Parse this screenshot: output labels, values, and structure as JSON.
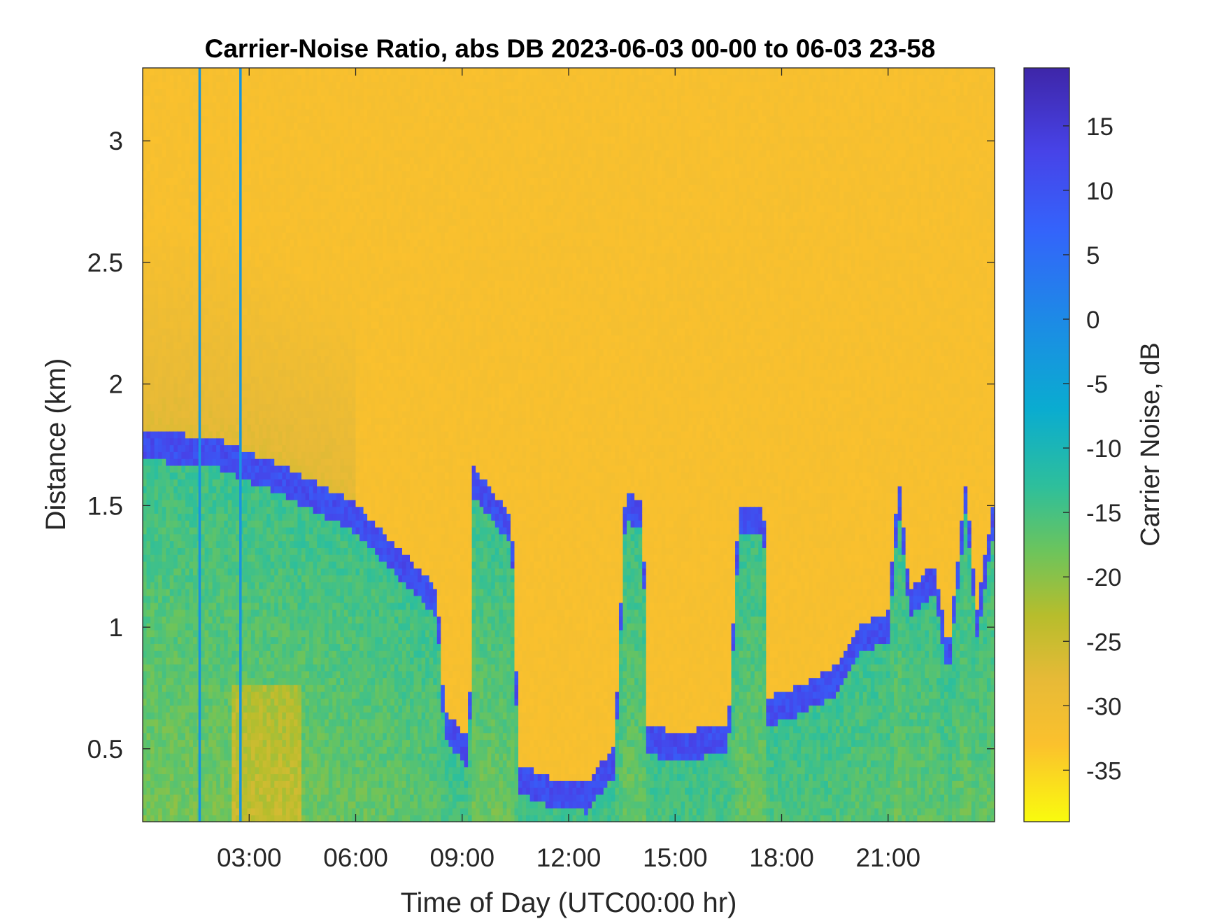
{
  "chart_data": {
    "type": "heatmap",
    "title": "Carrier-Noise Ratio, abs DB 2023-06-03 00-00 to 06-03 23-58",
    "xlabel": "Time of Day (UTC00:00 hr)",
    "ylabel": "Distance (km)",
    "colorbar_label": "Carrier Noise, dB",
    "xlim_hours": [
      0,
      24
    ],
    "ylim_km": [
      0.2,
      3.3
    ],
    "clim_db": [
      -39,
      19.5
    ],
    "x_ticks": [
      {
        "value": 3,
        "label": "03:00"
      },
      {
        "value": 6,
        "label": "06:00"
      },
      {
        "value": 9,
        "label": "09:00"
      },
      {
        "value": 12,
        "label": "12:00"
      },
      {
        "value": 15,
        "label": "15:00"
      },
      {
        "value": 18,
        "label": "18:00"
      },
      {
        "value": 21,
        "label": "21:00"
      }
    ],
    "y_ticks": [
      {
        "value": 0.5,
        "label": "0.5"
      },
      {
        "value": 1,
        "label": "1"
      },
      {
        "value": 1.5,
        "label": "1.5"
      },
      {
        "value": 2,
        "label": "2"
      },
      {
        "value": 2.5,
        "label": "2.5"
      },
      {
        "value": 3,
        "label": "3"
      }
    ],
    "colorbar_ticks": [
      {
        "value": 15,
        "label": "15"
      },
      {
        "value": 10,
        "label": "10"
      },
      {
        "value": 5,
        "label": "5"
      },
      {
        "value": 0,
        "label": "0"
      },
      {
        "value": -5,
        "label": "-5"
      },
      {
        "value": -10,
        "label": "-10"
      },
      {
        "value": -15,
        "label": "-15"
      },
      {
        "value": -20,
        "label": "-20"
      },
      {
        "value": -25,
        "label": "-25"
      },
      {
        "value": -30,
        "label": "-30"
      },
      {
        "value": -35,
        "label": "-35"
      }
    ],
    "colormap": "parula",
    "colormap_stops": [
      {
        "db": -39,
        "color": "#f9fb0e"
      },
      {
        "db": -33,
        "color": "#fbc12d"
      },
      {
        "db": -28,
        "color": "#e7ba37"
      },
      {
        "db": -23,
        "color": "#b7bd2c"
      },
      {
        "db": -18,
        "color": "#6cc45c"
      },
      {
        "db": -13,
        "color": "#2ebf9b"
      },
      {
        "db": -7,
        "color": "#0aacd0"
      },
      {
        "db": 0,
        "color": "#1d8ae6"
      },
      {
        "db": 7,
        "color": "#3463fb"
      },
      {
        "db": 13,
        "color": "#4743e8"
      },
      {
        "db": 19.5,
        "color": "#3e26a8"
      }
    ],
    "background_db": -32,
    "boundary_layer_top_km": [
      {
        "hour": 0,
        "km": 1.75
      },
      {
        "hour": 2,
        "km": 1.72
      },
      {
        "hour": 4,
        "km": 1.6
      },
      {
        "hour": 6,
        "km": 1.45
      },
      {
        "hour": 8.3,
        "km": 1.1
      },
      {
        "hour": 8.5,
        "km": 0.6
      },
      {
        "hour": 9.2,
        "km": 0.48
      },
      {
        "hour": 9.3,
        "km": 1.6
      },
      {
        "hour": 10.4,
        "km": 1.4
      },
      {
        "hour": 10.6,
        "km": 0.38
      },
      {
        "hour": 11.5,
        "km": 0.32
      },
      {
        "hour": 12.5,
        "km": 0.3
      },
      {
        "hour": 13.3,
        "km": 0.45
      },
      {
        "hour": 13.6,
        "km": 1.5
      },
      {
        "hour": 14.1,
        "km": 1.45
      },
      {
        "hour": 14.2,
        "km": 0.55
      },
      {
        "hour": 15,
        "km": 0.5
      },
      {
        "hour": 16.5,
        "km": 0.55
      },
      {
        "hour": 16.8,
        "km": 1.45
      },
      {
        "hour": 17.5,
        "km": 1.45
      },
      {
        "hour": 17.6,
        "km": 0.65
      },
      {
        "hour": 18.5,
        "km": 0.7
      },
      {
        "hour": 19.5,
        "km": 0.78
      },
      {
        "hour": 20.2,
        "km": 0.95
      },
      {
        "hour": 21,
        "km": 1.0
      },
      {
        "hour": 21.3,
        "km": 1.55
      },
      {
        "hour": 21.6,
        "km": 1.1
      },
      {
        "hour": 22.3,
        "km": 1.2
      },
      {
        "hour": 22.7,
        "km": 0.85
      },
      {
        "hour": 23.2,
        "km": 1.55
      },
      {
        "hour": 23.5,
        "km": 1.0
      },
      {
        "hour": 23.9,
        "km": 1.4
      },
      {
        "hour": 24,
        "km": 1.45
      }
    ],
    "vertical_streaks_hours": [
      1.6,
      2.75
    ],
    "grid": false
  }
}
